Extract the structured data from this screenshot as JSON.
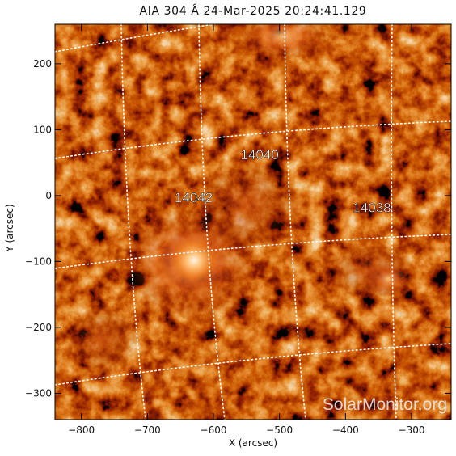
{
  "title": "AIA 304 Å 24-Mar-2025 20:24:41.129",
  "axes": {
    "xlabel": "X (arcsec)",
    "ylabel": "Y (arcsec)",
    "xlim": [
      -840,
      -240
    ],
    "ylim": [
      -340,
      260
    ],
    "x_ticks": [
      -800,
      -700,
      -600,
      -500,
      -400,
      -300
    ],
    "y_ticks": [
      200,
      100,
      0,
      -100,
      -200,
      -300
    ]
  },
  "regions": [
    {
      "label": "14040",
      "x": -530,
      "y": 55
    },
    {
      "label": "14042",
      "x": -630,
      "y": -10
    },
    {
      "label": "14038",
      "x": -360,
      "y": -25
    }
  ],
  "watermark": "SolarMonitor.org",
  "colors": {
    "dark": "#000000",
    "mid": "#8a1a00",
    "bright": "#e86a10",
    "hot": "#ffffff",
    "grid": "#ffffff"
  }
}
